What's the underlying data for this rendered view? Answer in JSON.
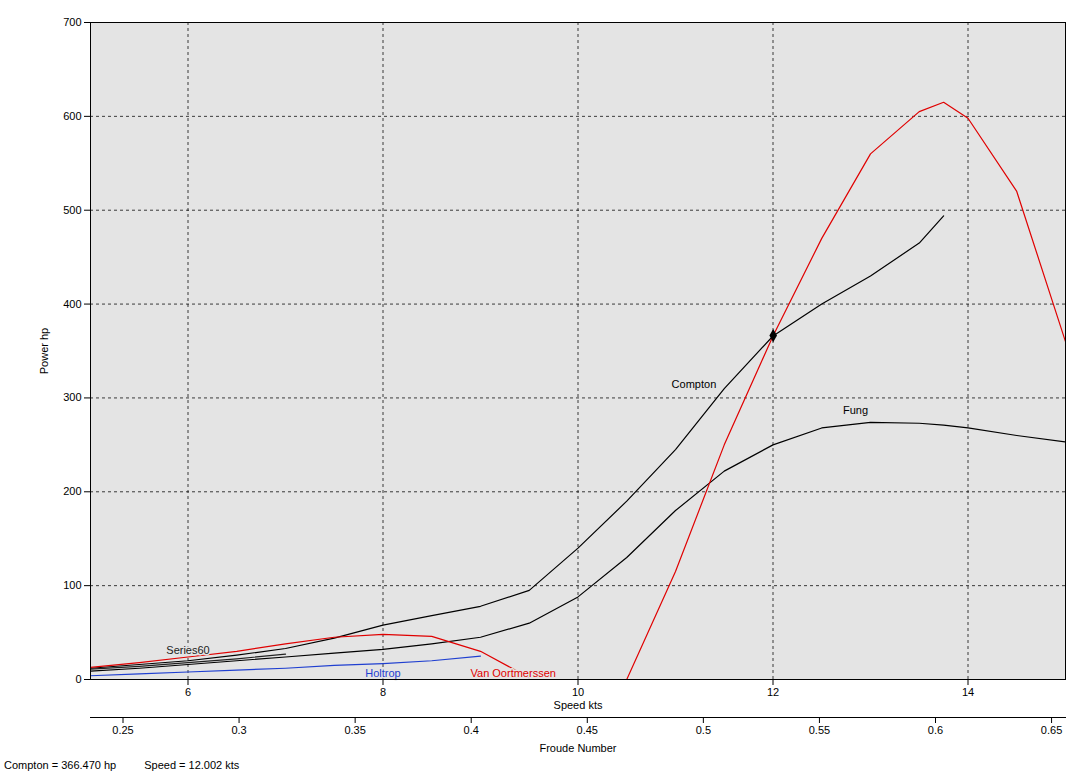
{
  "chart_data": {
    "type": "line",
    "x_label": "Speed kts",
    "y_label": "Power hp",
    "x2_label": "Froude Number",
    "x": [
      5,
      5.5,
      6,
      6.5,
      7,
      7.5,
      8,
      8.5,
      9,
      9.5,
      10,
      10.5,
      11,
      11.5,
      12,
      12.5,
      13,
      13.5,
      13.75,
      14,
      14.5,
      15
    ],
    "xlim": [
      5,
      15
    ],
    "xticks": [
      6,
      8,
      10,
      12,
      14
    ],
    "x2lim": [
      0.236,
      0.656
    ],
    "x2ticks": [
      0.25,
      0.3,
      0.35,
      0.4,
      0.45,
      0.5,
      0.55,
      0.6,
      0.65
    ],
    "ylim": [
      0,
      700
    ],
    "yticks": [
      0,
      100,
      200,
      300,
      400,
      500,
      600,
      700
    ],
    "grid": true,
    "series": [
      {
        "name": "Compton",
        "color": "#000000",
        "values": [
          12,
          16,
          20,
          26,
          33,
          44,
          58,
          68,
          78,
          95,
          140,
          190,
          245,
          310,
          366,
          400,
          430,
          465,
          494,
          null,
          null,
          null
        ]
      },
      {
        "name": "Fung",
        "color": "#000000",
        "values": [
          9,
          12,
          16,
          20,
          24,
          28,
          32,
          38,
          45,
          60,
          88,
          130,
          180,
          222,
          250,
          268,
          274,
          273,
          271,
          268,
          260,
          253
        ]
      },
      {
        "name": "Van Oortmerssen",
        "color": "#e00000",
        "values": [
          13,
          18,
          24,
          30,
          38,
          45,
          48,
          46,
          30,
          2,
          null,
          0,
          115,
          250,
          366,
          470,
          560,
          605,
          615,
          598,
          520,
          360
        ]
      },
      {
        "name": "Series60",
        "color": "#222222",
        "values": [
          11,
          14,
          18,
          22,
          27,
          null,
          null,
          null,
          null,
          null,
          null,
          null,
          null,
          null,
          null,
          null,
          null,
          null,
          null,
          null,
          null,
          null
        ]
      },
      {
        "name": "Holtrop",
        "color": "#1f3fd0",
        "values": [
          4,
          6,
          8,
          10,
          12,
          15,
          17,
          20,
          25,
          null,
          null,
          null,
          null,
          null,
          null,
          null,
          null,
          null,
          null,
          null,
          null,
          null
        ]
      }
    ],
    "cursor": {
      "x": 12.002,
      "y": 366.47,
      "marker": "diamond",
      "color": "#000000"
    },
    "caption": [
      "Compton = 366.470 hp",
      "Speed = 12.002 kts"
    ]
  }
}
